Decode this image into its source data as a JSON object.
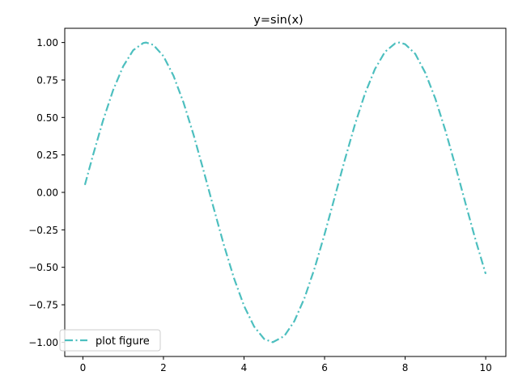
{
  "chart_data": {
    "type": "line",
    "title": "y=sin(x)",
    "xlabel": "",
    "ylabel": "",
    "xlim": [
      -0.45,
      10.5
    ],
    "ylim": [
      -1.095,
      1.095
    ],
    "x_ticks": [
      0,
      2,
      4,
      6,
      8,
      10
    ],
    "y_ticks": [
      -1.0,
      -0.75,
      -0.5,
      -0.25,
      0.0,
      0.25,
      0.5,
      0.75,
      1.0
    ],
    "x_tick_labels": [
      "0",
      "2",
      "4",
      "6",
      "8",
      "10"
    ],
    "y_tick_labels": [
      "−1.00",
      "−0.75",
      "−0.50",
      "−0.25",
      "0.00",
      "0.25",
      "0.50",
      "0.75",
      "1.00"
    ],
    "grid": false,
    "legend_position": "lower-left",
    "series": [
      {
        "name": "plot figure",
        "color": "#4dbfbf",
        "line_style": "dash-dot",
        "function": "sin(x)",
        "x": [
          0.05,
          0.25,
          0.5,
          0.75,
          1.0,
          1.25,
          1.5,
          1.571,
          1.75,
          2.0,
          2.25,
          2.5,
          2.75,
          3.0,
          3.25,
          3.5,
          3.75,
          4.0,
          4.25,
          4.5,
          4.712,
          5.0,
          5.25,
          5.5,
          5.75,
          6.0,
          6.25,
          6.5,
          6.75,
          7.0,
          7.25,
          7.5,
          7.75,
          7.854,
          8.0,
          8.25,
          8.5,
          8.75,
          9.0,
          9.25,
          9.5,
          9.75,
          10.0
        ],
        "y": [
          0.05,
          0.247,
          0.479,
          0.682,
          0.841,
          0.949,
          0.997,
          1.0,
          0.984,
          0.909,
          0.778,
          0.598,
          0.382,
          0.141,
          -0.108,
          -0.351,
          -0.572,
          -0.757,
          -0.895,
          -0.978,
          -1.0,
          -0.959,
          -0.859,
          -0.706,
          -0.508,
          -0.279,
          -0.033,
          0.215,
          0.45,
          0.657,
          0.823,
          0.938,
          0.994,
          1.0,
          0.989,
          0.925,
          0.798,
          0.625,
          0.412,
          0.174,
          -0.075,
          -0.319,
          -0.544
        ]
      }
    ]
  }
}
